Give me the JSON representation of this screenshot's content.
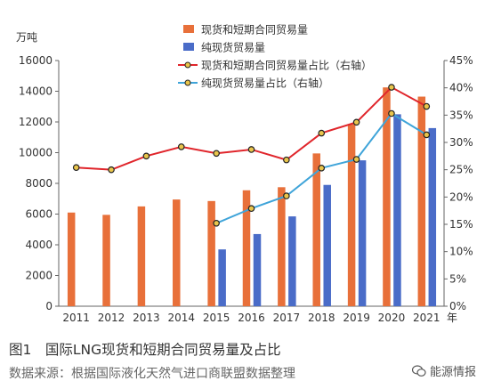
{
  "chart_data": {
    "type": "bar",
    "categories": [
      "2011",
      "2012",
      "2013",
      "2014",
      "2015",
      "2016",
      "2017",
      "2018",
      "2019",
      "2020",
      "2021"
    ],
    "x_suffix": "年",
    "left_unit": "万吨",
    "ylim_left": [
      0,
      16000
    ],
    "left_ticks": [
      "0",
      "2000",
      "4000",
      "6000",
      "8000",
      "10000",
      "12000",
      "14000",
      "16000"
    ],
    "ylim_right": [
      0,
      45
    ],
    "right_ticks": [
      "0%",
      "5%",
      "10%",
      "15%",
      "20%",
      "25%",
      "30%",
      "35%",
      "40%",
      "45%"
    ],
    "grid": false,
    "legend_position": "top-right",
    "series": [
      {
        "name": "现货和短期合同贸易量",
        "kind": "bar",
        "axis": "left",
        "color": "#E8703A",
        "values": [
          6100,
          5950,
          6500,
          6950,
          6850,
          7550,
          7750,
          9950,
          11850,
          14250,
          13650
        ]
      },
      {
        "name": "纯现货贸易量",
        "kind": "bar",
        "axis": "left",
        "color": "#4A6CC8",
        "values": [
          null,
          null,
          null,
          null,
          3700,
          4700,
          5850,
          7900,
          9500,
          12500,
          11600
        ]
      },
      {
        "name": "现货和短期合同贸易量占比（右轴）",
        "kind": "line",
        "axis": "right",
        "color": "#E0252B",
        "values": [
          25.4,
          25.0,
          27.5,
          29.2,
          28.0,
          28.7,
          26.8,
          31.7,
          33.7,
          40.1,
          36.6
        ]
      },
      {
        "name": "纯现货贸易量占比（右轴）",
        "kind": "line",
        "axis": "right",
        "color": "#3FA4D9",
        "values": [
          null,
          null,
          null,
          null,
          15.2,
          17.9,
          20.2,
          25.3,
          26.9,
          35.3,
          31.4
        ]
      }
    ]
  },
  "caption": "图1　国际LNG现货和短期合同贸易量及占比",
  "source": "数据来源：根据国际液化天然气进口商联盟数据整理",
  "watermark": "能源情报",
  "watermark_icon": "wechat-icon"
}
